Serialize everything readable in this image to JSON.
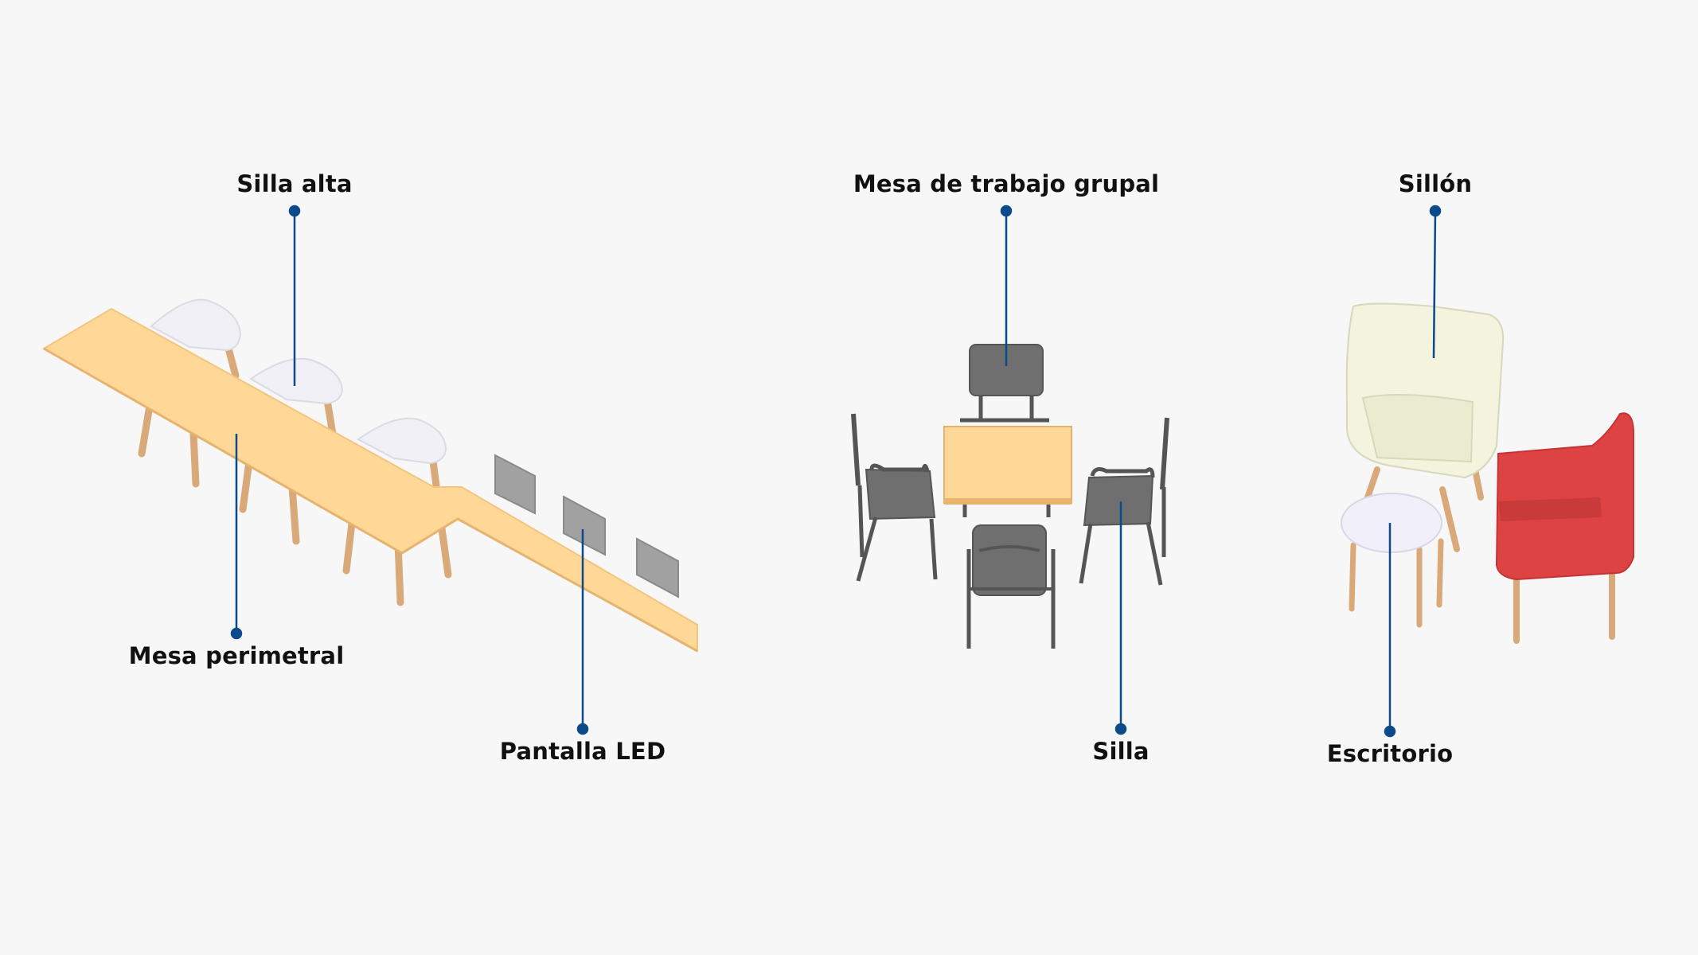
{
  "labels": {
    "silla_alta": "Silla alta",
    "mesa_perimetral": "Mesa perimetral",
    "pantalla_led": "Pantalla LED",
    "mesa_trabajo_grupal": "Mesa de trabajo grupal",
    "silla": "Silla",
    "sillon": "Sillón",
    "escritorio": "Escritorio"
  },
  "colors": {
    "background": "#f7f7f7",
    "leader_line": "#0b4a8b",
    "wood": "#ffd797",
    "wood_leg": "#d9a97a",
    "stool_seat": "#f1f0f6",
    "screen": "#9e9e9e",
    "chair_grey": "#6f6f6f",
    "armchair_cream": "#f3f3de",
    "armchair_red": "#de4344",
    "side_table": "#f1eff8"
  }
}
